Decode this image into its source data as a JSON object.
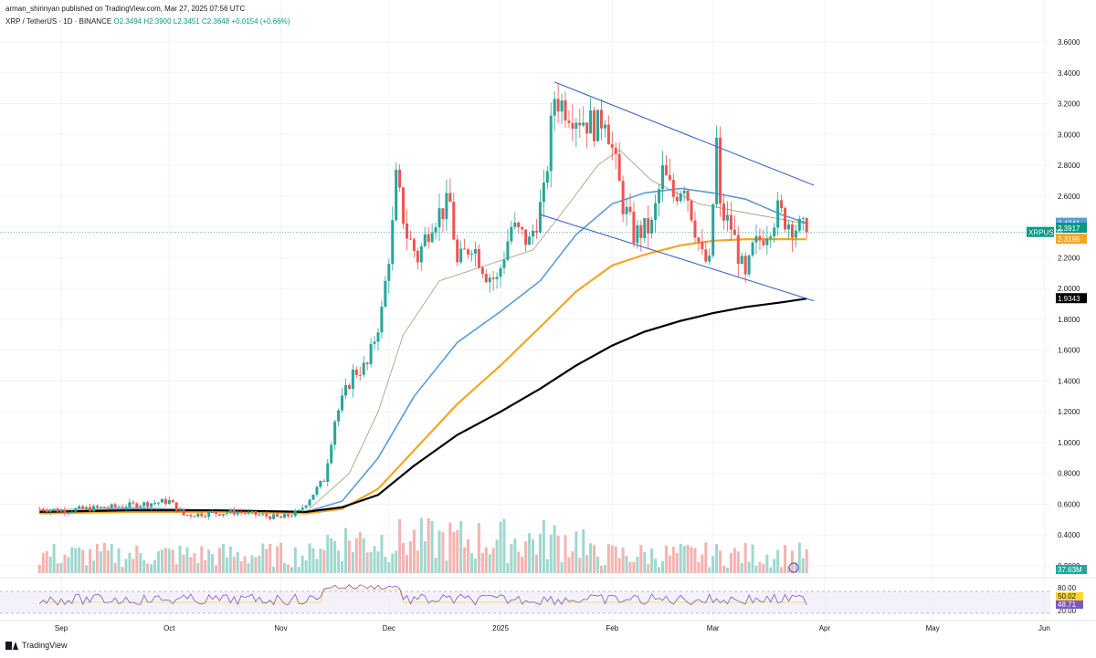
{
  "header": {
    "publisher_line": "arman_shirinyan published on TradingView.com, Mar 27, 2025 07:56 UTC",
    "symbol": "XRP / TetherUS · 1D · BINANCE",
    "ohlc": "O2.3494 H2.3900 L2.3451 C2.3648 +0.0154 (+0.66%)"
  },
  "footer": {
    "brand": "TradingView"
  },
  "colors": {
    "up": "#26a69a",
    "down": "#ef5350",
    "ema_fast": "#5b9bd5",
    "sma_mid": "#f5a623",
    "sma_long": "#000000",
    "channel": "#3d63c9",
    "rsi": "#7e57c2",
    "thin_ma": "#9e9e76"
  },
  "chart_data": {
    "type": "candlestick",
    "y_axis": {
      "min": 0.2,
      "max": 3.6,
      "ticks": [
        "3.6000",
        "3.4000",
        "3.2000",
        "3.0000",
        "2.8000",
        "2.6000",
        "2.4000",
        "2.2000",
        "2.0000",
        "1.8000",
        "1.6000",
        "1.4000",
        "1.2000",
        "1.0000",
        "0.8000",
        "0.6000",
        "0.4000",
        "0.2000"
      ]
    },
    "x_axis": {
      "labels": [
        "Sep",
        "Oct",
        "Nov",
        "Dec",
        "2025",
        "Feb",
        "Mar",
        "Apr",
        "May",
        "Jun"
      ]
    },
    "price_labels": [
      {
        "text": "2.4241",
        "value": 2.4241,
        "color": "#5b9bd5"
      },
      {
        "text": "2.3917",
        "value": 2.3917,
        "color": "#089981"
      },
      {
        "text": "XRPUSDT",
        "value": 2.364,
        "color": "#089981"
      },
      {
        "text": "2.3195",
        "value": 2.3195,
        "color": "#f5a623"
      },
      {
        "text": "1.9343",
        "value": 1.9343,
        "color": "#000000"
      }
    ],
    "volume_label": "37.63M",
    "rsi_axis": [
      "80.00",
      "20.00"
    ],
    "rsi_labels": [
      {
        "text": "50.02",
        "color": "#fdd835"
      },
      {
        "text": "48.71",
        "color": "#7e57c2"
      }
    ],
    "price_keypoints": [
      [
        "2024-08-26",
        0.57
      ],
      [
        "2024-09-01",
        0.56
      ],
      [
        "2024-09-15",
        0.58
      ],
      [
        "2024-10-01",
        0.62
      ],
      [
        "2024-10-05",
        0.53
      ],
      [
        "2024-10-20",
        0.55
      ],
      [
        "2024-11-01",
        0.51
      ],
      [
        "2024-11-06",
        0.55
      ],
      [
        "2024-11-13",
        0.76
      ],
      [
        "2024-11-16",
        1.15
      ],
      [
        "2024-11-21",
        1.45
      ],
      [
        "2024-11-25",
        1.5
      ],
      [
        "2024-11-29",
        1.85
      ],
      [
        "2024-12-02",
        2.4
      ],
      [
        "2024-12-03",
        2.7
      ],
      [
        "2024-12-06",
        2.35
      ],
      [
        "2024-12-09",
        2.2
      ],
      [
        "2024-12-13",
        2.45
      ],
      [
        "2024-12-18",
        2.55
      ],
      [
        "2024-12-20",
        2.15
      ],
      [
        "2024-12-24",
        2.3
      ],
      [
        "2024-12-28",
        2.1
      ],
      [
        "2024-12-31",
        2.05
      ],
      [
        "2025-01-04",
        2.4
      ],
      [
        "2025-01-09",
        2.3
      ],
      [
        "2025-01-13",
        2.6
      ],
      [
        "2025-01-16",
        3.25
      ],
      [
        "2025-01-18",
        3.2
      ],
      [
        "2025-01-21",
        3.15
      ],
      [
        "2025-01-24",
        3.1
      ],
      [
        "2025-01-28",
        3.05
      ],
      [
        "2025-01-30",
        3.15
      ],
      [
        "2025-02-01",
        2.9
      ],
      [
        "2025-02-04",
        2.55
      ],
      [
        "2025-02-07",
        2.35
      ],
      [
        "2025-02-12",
        2.4
      ],
      [
        "2025-02-15",
        2.75
      ],
      [
        "2025-02-18",
        2.6
      ],
      [
        "2025-02-21",
        2.7
      ],
      [
        "2025-02-24",
        2.4
      ],
      [
        "2025-02-26",
        2.2
      ],
      [
        "2025-02-28",
        2.15
      ],
      [
        "2025-03-02",
        2.95
      ],
      [
        "2025-03-03",
        2.5
      ],
      [
        "2025-03-06",
        2.4
      ],
      [
        "2025-03-10",
        2.05
      ],
      [
        "2025-03-12",
        2.25
      ],
      [
        "2025-03-15",
        2.35
      ],
      [
        "2025-03-19",
        2.5
      ],
      [
        "2025-03-21",
        2.45
      ],
      [
        "2025-03-24",
        2.4
      ],
      [
        "2025-03-27",
        2.3648
      ]
    ],
    "moving_averages": [
      {
        "points": [
          [
            "2024-08-26",
            0.56
          ],
          [
            "2024-09-20",
            0.58
          ],
          [
            "2024-10-15",
            0.56
          ],
          [
            "2024-11-08",
            0.55
          ],
          [
            "2024-11-20",
            0.8
          ],
          [
            "2024-11-28",
            1.2
          ],
          [
            "2024-12-05",
            1.7
          ],
          [
            "2024-12-15",
            2.05
          ],
          [
            "2024-12-28",
            2.15
          ],
          [
            "2025-01-10",
            2.25
          ],
          [
            "2025-01-20",
            2.55
          ],
          [
            "2025-01-28",
            2.8
          ],
          [
            "2025-02-03",
            2.9
          ],
          [
            "2025-02-12",
            2.7
          ],
          [
            "2025-02-25",
            2.55
          ],
          [
            "2025-03-08",
            2.5
          ],
          [
            "2025-03-27",
            2.42
          ]
        ],
        "color": "#9e9e76"
      },
      {
        "points": [
          [
            "2024-08-26",
            0.55
          ],
          [
            "2024-09-20",
            0.57
          ],
          [
            "2024-10-15",
            0.56
          ],
          [
            "2024-11-08",
            0.55
          ],
          [
            "2024-11-18",
            0.62
          ],
          [
            "2024-11-28",
            0.9
          ],
          [
            "2024-12-08",
            1.3
          ],
          [
            "2024-12-20",
            1.65
          ],
          [
            "2025-01-01",
            1.85
          ],
          [
            "2025-01-12",
            2.05
          ],
          [
            "2025-01-22",
            2.35
          ],
          [
            "2025-02-01",
            2.55
          ],
          [
            "2025-02-10",
            2.62
          ],
          [
            "2025-02-20",
            2.65
          ],
          [
            "2025-03-01",
            2.62
          ],
          [
            "2025-03-10",
            2.58
          ],
          [
            "2025-03-20",
            2.48
          ],
          [
            "2025-03-27",
            2.4241
          ]
        ],
        "color": "#5b9bd5"
      },
      {
        "points": [
          [
            "2024-08-26",
            0.54
          ],
          [
            "2024-09-20",
            0.55
          ],
          [
            "2024-10-15",
            0.55
          ],
          [
            "2024-11-08",
            0.54
          ],
          [
            "2024-11-18",
            0.57
          ],
          [
            "2024-11-28",
            0.7
          ],
          [
            "2024-12-08",
            0.95
          ],
          [
            "2024-12-20",
            1.25
          ],
          [
            "2025-01-01",
            1.5
          ],
          [
            "2025-01-12",
            1.75
          ],
          [
            "2025-01-22",
            1.98
          ],
          [
            "2025-02-01",
            2.15
          ],
          [
            "2025-02-10",
            2.22
          ],
          [
            "2025-02-20",
            2.28
          ],
          [
            "2025-03-01",
            2.31
          ],
          [
            "2025-03-10",
            2.32
          ],
          [
            "2025-03-20",
            2.32
          ],
          [
            "2025-03-27",
            2.3195
          ]
        ],
        "color": "#f5a623"
      },
      {
        "points": [
          [
            "2024-08-26",
            0.55
          ],
          [
            "2024-09-20",
            0.56
          ],
          [
            "2024-10-15",
            0.56
          ],
          [
            "2024-11-08",
            0.55
          ],
          [
            "2024-11-18",
            0.58
          ],
          [
            "2024-11-28",
            0.66
          ],
          [
            "2024-12-08",
            0.85
          ],
          [
            "2024-12-20",
            1.05
          ],
          [
            "2025-01-01",
            1.2
          ],
          [
            "2025-01-12",
            1.35
          ],
          [
            "2025-01-22",
            1.5
          ],
          [
            "2025-02-01",
            1.63
          ],
          [
            "2025-02-10",
            1.72
          ],
          [
            "2025-02-20",
            1.79
          ],
          [
            "2025-03-01",
            1.84
          ],
          [
            "2025-03-10",
            1.88
          ],
          [
            "2025-03-20",
            1.91
          ],
          [
            "2025-03-27",
            1.9343
          ]
        ],
        "color": "#000000"
      }
    ],
    "trendlines": [
      {
        "from": [
          "2025-01-16",
          3.34
        ],
        "to": [
          "2025-03-29",
          2.67
        ]
      },
      {
        "from": [
          "2025-01-12",
          2.48
        ],
        "to": [
          "2025-03-29",
          1.92
        ]
      }
    ]
  }
}
